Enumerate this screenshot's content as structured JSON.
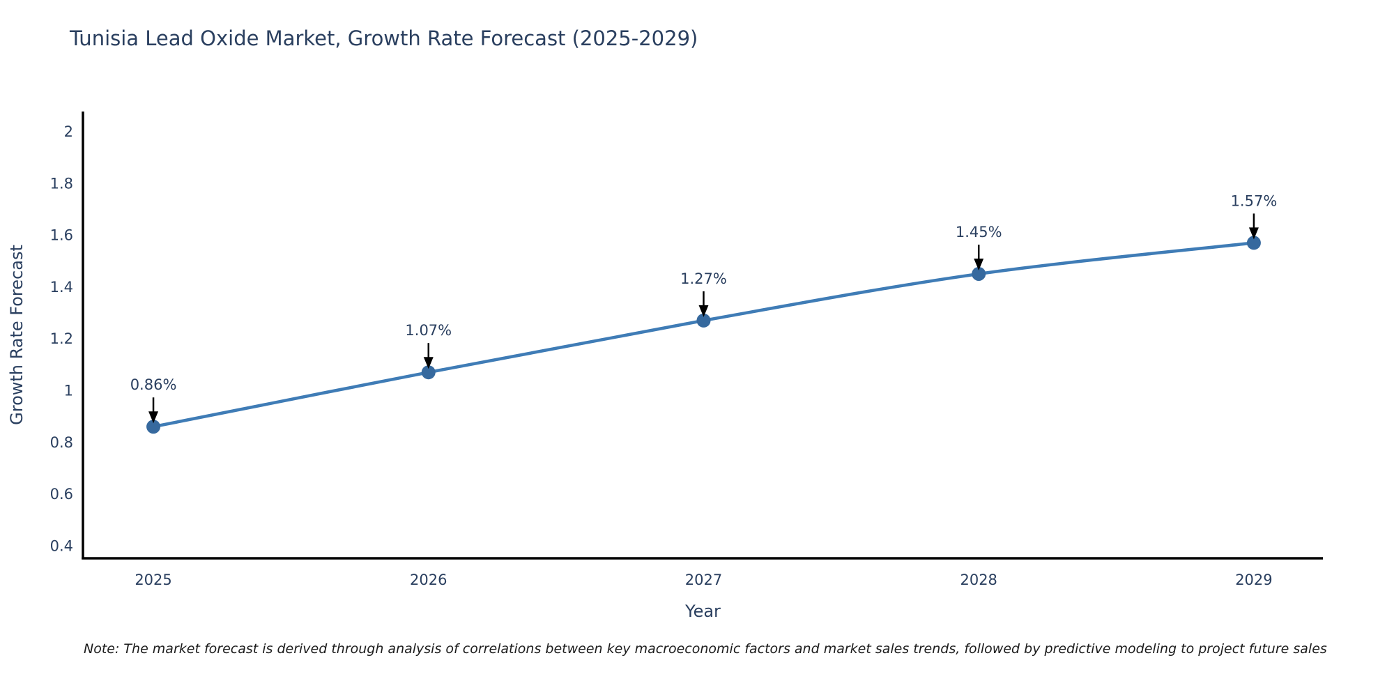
{
  "title": "Tunisia Lead Oxide Market, Growth Rate Forecast (2025-2029)",
  "note": "Note: The market forecast is derived through analysis of correlations between key macroeconomic factors and market sales trends, followed by predictive modeling to project future sales",
  "chart_data": {
    "type": "line",
    "title": "Tunisia Lead Oxide Market, Growth Rate Forecast (2025-2029)",
    "xlabel": "Year",
    "ylabel": "Growth Rate Forecast",
    "categories": [
      "2025",
      "2026",
      "2027",
      "2028",
      "2029"
    ],
    "values": [
      0.86,
      1.07,
      1.27,
      1.45,
      1.57
    ],
    "point_labels": [
      "0.86%",
      "1.07%",
      "1.27%",
      "1.45%",
      "1.57%"
    ],
    "y_ticks": [
      "2",
      "1.8",
      "1.6",
      "1.4",
      "1.2",
      "1",
      "0.8",
      "0.6",
      "0.4"
    ],
    "y_tick_values": [
      2,
      1.8,
      1.6,
      1.4,
      1.2,
      1,
      0.8,
      0.6,
      0.4
    ],
    "ylim": [
      0.352,
      2.077
    ],
    "grid": false,
    "legend_position": "none",
    "colors": {
      "line": "#3f7cb6",
      "marker": "#36699e",
      "axis": "#000000",
      "text": "#2a3f5f",
      "annotation_text": "#2a3f5f",
      "annotation_arrow": "#000000",
      "background": "#ffffff"
    }
  }
}
